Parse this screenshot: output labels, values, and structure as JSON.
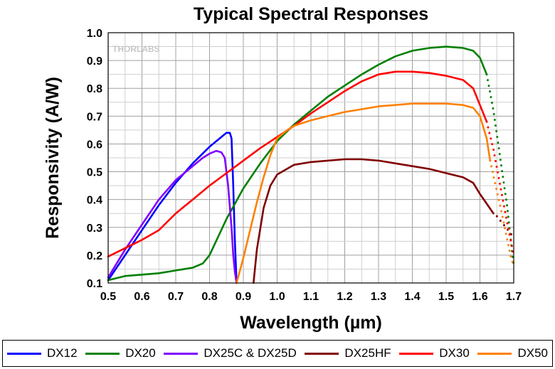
{
  "chart_data": {
    "type": "line",
    "title": "Typical Spectral Responses",
    "xlabel": "Wavelength (µm)",
    "ylabel": "Responsivity (A/W)",
    "xlim": [
      0.5,
      1.7
    ],
    "ylim": [
      0.1,
      1.0
    ],
    "x_ticks": [
      "0.5",
      "0.6",
      "0.7",
      "0.8",
      "0.9",
      "1.0",
      "1.1",
      "1.2",
      "1.3",
      "1.4",
      "1.5",
      "1.6",
      "1.7"
    ],
    "y_ticks": [
      "0.1",
      "0.2",
      "0.3",
      "0.4",
      "0.5",
      "0.6",
      "0.7",
      "0.8",
      "0.9",
      "1.0"
    ],
    "grid": true,
    "legend_position": "bottom",
    "watermark": "THORLABS",
    "series": [
      {
        "name": "DX12",
        "color": "#0000ff",
        "x": [
          0.5,
          0.55,
          0.6,
          0.65,
          0.7,
          0.75,
          0.8,
          0.83,
          0.85,
          0.86,
          0.865,
          0.87,
          0.875,
          0.88
        ],
        "y": [
          0.11,
          0.2,
          0.29,
          0.38,
          0.46,
          0.53,
          0.59,
          0.62,
          0.64,
          0.64,
          0.62,
          0.45,
          0.25,
          0.1
        ]
      },
      {
        "name": "DX20",
        "color": "#008000",
        "x": [
          0.5,
          0.55,
          0.6,
          0.65,
          0.7,
          0.75,
          0.78,
          0.8,
          0.85,
          0.9,
          0.95,
          1.0,
          1.05,
          1.1,
          1.15,
          1.2,
          1.25,
          1.3,
          1.35,
          1.4,
          1.45,
          1.5,
          1.55,
          1.58,
          1.6,
          1.62
        ],
        "y": [
          0.11,
          0.125,
          0.13,
          0.135,
          0.145,
          0.155,
          0.17,
          0.2,
          0.33,
          0.44,
          0.53,
          0.61,
          0.67,
          0.72,
          0.77,
          0.81,
          0.85,
          0.885,
          0.915,
          0.935,
          0.945,
          0.95,
          0.945,
          0.935,
          0.91,
          0.85
        ]
      },
      {
        "name": "DX20 (dotted tail)",
        "color": "#008000",
        "dotted": true,
        "x": [
          1.62,
          1.64,
          1.66,
          1.68,
          1.7
        ],
        "y": [
          0.85,
          0.72,
          0.55,
          0.38,
          0.16
        ]
      },
      {
        "name": "DX25C & DX25D",
        "color": "#8000ff",
        "x": [
          0.5,
          0.55,
          0.6,
          0.65,
          0.7,
          0.75,
          0.78,
          0.8,
          0.82,
          0.835,
          0.845,
          0.855,
          0.865,
          0.87,
          0.875,
          0.88
        ],
        "y": [
          0.12,
          0.22,
          0.31,
          0.4,
          0.47,
          0.52,
          0.55,
          0.565,
          0.575,
          0.57,
          0.55,
          0.45,
          0.3,
          0.2,
          0.14,
          0.1
        ]
      },
      {
        "name": "DX25HF",
        "color": "#800000",
        "x": [
          0.93,
          0.94,
          0.96,
          0.98,
          1.0,
          1.05,
          1.1,
          1.15,
          1.2,
          1.25,
          1.3,
          1.35,
          1.4,
          1.45,
          1.5,
          1.55,
          1.58,
          1.6,
          1.62,
          1.64
        ],
        "y": [
          0.1,
          0.22,
          0.37,
          0.45,
          0.49,
          0.525,
          0.535,
          0.54,
          0.545,
          0.545,
          0.54,
          0.53,
          0.52,
          0.51,
          0.495,
          0.48,
          0.46,
          0.42,
          0.385,
          0.35
        ]
      },
      {
        "name": "DX25HF (dotted tail)",
        "color": "#800000",
        "dotted": true,
        "x": [
          1.65,
          1.67,
          1.69,
          1.7
        ],
        "y": [
          0.34,
          0.31,
          0.28,
          0.26
        ]
      },
      {
        "name": "DX30",
        "color": "#ff0000",
        "x": [
          0.5,
          0.55,
          0.6,
          0.65,
          0.7,
          0.75,
          0.8,
          0.85,
          0.9,
          0.95,
          1.0,
          1.05,
          1.1,
          1.15,
          1.2,
          1.25,
          1.3,
          1.35,
          1.4,
          1.45,
          1.5,
          1.55,
          1.58,
          1.6,
          1.62
        ],
        "y": [
          0.195,
          0.225,
          0.255,
          0.29,
          0.35,
          0.4,
          0.45,
          0.495,
          0.54,
          0.585,
          0.625,
          0.665,
          0.71,
          0.75,
          0.79,
          0.825,
          0.85,
          0.86,
          0.86,
          0.855,
          0.845,
          0.83,
          0.8,
          0.74,
          0.68
        ]
      },
      {
        "name": "DX30 (dotted tail)",
        "color": "#ff0000",
        "dotted": true,
        "x": [
          1.62,
          1.64,
          1.66,
          1.68,
          1.7
        ],
        "y": [
          0.68,
          0.58,
          0.45,
          0.32,
          0.2
        ]
      },
      {
        "name": "DX50",
        "color": "#ff8000",
        "x": [
          0.88,
          0.9,
          0.92,
          0.94,
          0.96,
          0.98,
          1.0,
          1.03,
          1.05,
          1.1,
          1.15,
          1.2,
          1.25,
          1.3,
          1.35,
          1.4,
          1.45,
          1.5,
          1.55,
          1.58,
          1.6,
          1.62,
          1.63
        ],
        "y": [
          0.1,
          0.19,
          0.29,
          0.39,
          0.48,
          0.56,
          0.62,
          0.65,
          0.665,
          0.685,
          0.7,
          0.715,
          0.725,
          0.735,
          0.74,
          0.745,
          0.745,
          0.745,
          0.74,
          0.73,
          0.7,
          0.62,
          0.54
        ]
      },
      {
        "name": "DX50 (dotted tail)",
        "color": "#ff8000",
        "dotted": true,
        "x": [
          1.63,
          1.65,
          1.67,
          1.69,
          1.7
        ],
        "y": [
          0.54,
          0.43,
          0.32,
          0.2,
          0.16
        ]
      }
    ]
  },
  "legend": [
    {
      "label": "DX12",
      "color": "#0000ff"
    },
    {
      "label": "DX20",
      "color": "#008000"
    },
    {
      "label": "DX25C & DX25D",
      "color": "#8000ff"
    },
    {
      "label": "DX25HF",
      "color": "#800000"
    },
    {
      "label": "DX30",
      "color": "#ff0000"
    },
    {
      "label": "DX50",
      "color": "#ff8000"
    }
  ]
}
